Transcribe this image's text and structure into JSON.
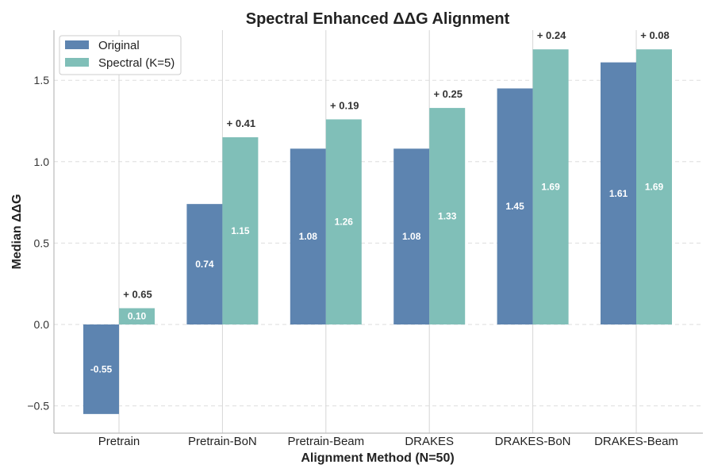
{
  "chart_data": {
    "type": "bar",
    "title": "Spectral Enhanced ΔΔG Alignment",
    "xlabel": "Alignment Method (N=50)",
    "ylabel": "Median ΔΔG",
    "categories": [
      "Pretrain",
      "Pretrain-BoN",
      "Pretrain-Beam",
      "DRAKES",
      "DRAKES-BoN",
      "DRAKES-Beam"
    ],
    "series": [
      {
        "name": "Original",
        "color": "#5d84b0",
        "values": [
          -0.55,
          0.74,
          1.08,
          1.08,
          1.45,
          1.61
        ],
        "labels": [
          "-0.55",
          "0.74",
          "1.08",
          "1.08",
          "1.45",
          "1.61"
        ]
      },
      {
        "name": "Spectral (K=5)",
        "color": "#80bfb8",
        "values": [
          0.1,
          1.15,
          1.26,
          1.33,
          1.69,
          1.69
        ],
        "labels": [
          "0.10",
          "1.15",
          "1.26",
          "1.33",
          "1.69",
          "1.69"
        ]
      }
    ],
    "deltas": [
      "+ 0.65",
      "+ 0.41",
      "+ 0.19",
      "+ 0.25",
      "+ 0.24",
      "+ 0.08"
    ],
    "ylim": [
      -0.67,
      1.82
    ],
    "yticks": [
      -0.5,
      0.0,
      0.5,
      1.0,
      1.5
    ],
    "ytick_labels": [
      "−0.5",
      "0.0",
      "0.5",
      "1.0",
      "1.5"
    ],
    "grid": "y-dashed",
    "legend": "top-left"
  }
}
